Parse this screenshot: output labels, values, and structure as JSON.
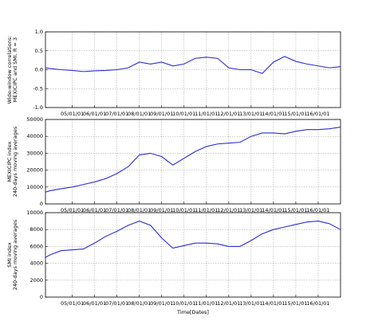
{
  "chart_data": [
    {
      "type": "line",
      "ylabel": [
        "Wide-window correlations:",
        "MEXICIPC and SMI, R = 3"
      ],
      "x": [
        2003.8,
        2004,
        2004.5,
        2005,
        2005.5,
        2006,
        2006.5,
        2007,
        2007.5,
        2008,
        2008.5,
        2009,
        2009.5,
        2010,
        2010.5,
        2011,
        2011.5,
        2012,
        2012.5,
        2013,
        2013.5,
        2014,
        2014.5,
        2015,
        2015.5,
        2016,
        2016.5,
        2017
      ],
      "values": [
        0.05,
        0.03,
        0.0,
        -0.02,
        -0.05,
        -0.03,
        -0.02,
        0.0,
        0.05,
        0.2,
        0.15,
        0.2,
        0.1,
        0.15,
        0.3,
        0.33,
        0.3,
        0.05,
        0.0,
        0.0,
        -0.1,
        0.2,
        0.35,
        0.22,
        0.15,
        0.1,
        0.05,
        0.08
      ],
      "color": "#2b2bd9",
      "xlim": [
        2003.8,
        2017.0
      ],
      "xticks": [
        {
          "value": 2005,
          "label": "05/01/01"
        },
        {
          "value": 2006,
          "label": "06/01/01"
        },
        {
          "value": 2007,
          "label": "07/01/01"
        },
        {
          "value": 2008,
          "label": "08/01/01"
        },
        {
          "value": 2009,
          "label": "09/01/01"
        },
        {
          "value": 2010,
          "label": "10/01/01"
        },
        {
          "value": 2011,
          "label": "11/01/01"
        },
        {
          "value": 2012,
          "label": "12/01/01"
        },
        {
          "value": 2013,
          "label": "13/01/01"
        },
        {
          "value": 2014,
          "label": "14/01/01"
        },
        {
          "value": 2015,
          "label": "15/01/01"
        },
        {
          "value": 2016,
          "label": "16/01/01"
        }
      ],
      "ylim": [
        -1.0,
        1.0
      ],
      "yticks": [
        {
          "value": -1,
          "label": "-1.0"
        },
        -0.5,
        {
          "value": 0,
          "label": "0.0"
        },
        0.5,
        {
          "value": 1,
          "label": "1.0"
        }
      ],
      "grid": true
    },
    {
      "type": "line",
      "ylabel": [
        "MEXICIPC index",
        "240-days moving averages"
      ],
      "x": [
        2003.8,
        2004,
        2004.5,
        2005,
        2005.5,
        2006,
        2006.5,
        2007,
        2007.5,
        2008,
        2008.5,
        2009,
        2009.5,
        2010,
        2010.5,
        2011,
        2011.5,
        2012,
        2012.5,
        2013,
        2013.5,
        2014,
        2014.5,
        2015,
        2015.5,
        2016,
        2016.5,
        2017
      ],
      "values": [
        7000,
        7800,
        9000,
        10000,
        11500,
        13000,
        15000,
        18000,
        22000,
        29000,
        30000,
        28000,
        23000,
        27000,
        31000,
        34000,
        35500,
        36000,
        36500,
        40000,
        42000,
        42000,
        41500,
        43000,
        44000,
        44000,
        44500,
        45500
      ],
      "color": "#2b2bd9",
      "xlim": [
        2003.8,
        2017.0
      ],
      "xticks": [
        {
          "value": 2005,
          "label": "05/01/01"
        },
        {
          "value": 2006,
          "label": "06/01/01"
        },
        {
          "value": 2007,
          "label": "07/01/01"
        },
        {
          "value": 2008,
          "label": "08/01/01"
        },
        {
          "value": 2009,
          "label": "09/01/01"
        },
        {
          "value": 2010,
          "label": "10/01/01"
        },
        {
          "value": 2011,
          "label": "11/01/01"
        },
        {
          "value": 2012,
          "label": "12/01/01"
        },
        {
          "value": 2013,
          "label": "13/01/01"
        },
        {
          "value": 2014,
          "label": "14/01/01"
        },
        {
          "value": 2015,
          "label": "15/01/01"
        },
        {
          "value": 2016,
          "label": "16/01/01"
        }
      ],
      "ylim": [
        0,
        50000
      ],
      "yticks": [
        0,
        10000,
        20000,
        30000,
        40000,
        50000
      ],
      "grid": true
    },
    {
      "type": "line",
      "ylabel": [
        "SMI index",
        "240-days moving averages"
      ],
      "xlabel": "Time[Dates]",
      "x": [
        2003.8,
        2004,
        2004.5,
        2005,
        2005.5,
        2006,
        2006.5,
        2007,
        2007.5,
        2008,
        2008.5,
        2009,
        2009.5,
        2010,
        2010.5,
        2011,
        2011.5,
        2012,
        2012.5,
        2013,
        2013.5,
        2014,
        2014.5,
        2015,
        2015.5,
        2016,
        2016.5,
        2017
      ],
      "values": [
        4700,
        5000,
        5500,
        5600,
        5700,
        6400,
        7200,
        7800,
        8500,
        9000,
        8500,
        7000,
        5800,
        6100,
        6400,
        6400,
        6300,
        6000,
        6000,
        6700,
        7500,
        8000,
        8300,
        8600,
        8900,
        9000,
        8700,
        8000
      ],
      "color": "#2b2bd9",
      "xlim": [
        2003.8,
        2017.0
      ],
      "xticks": [
        {
          "value": 2005,
          "label": "05/01/01"
        },
        {
          "value": 2006,
          "label": "06/01/01"
        },
        {
          "value": 2007,
          "label": "07/01/01"
        },
        {
          "value": 2008,
          "label": "08/01/01"
        },
        {
          "value": 2009,
          "label": "09/01/01"
        },
        {
          "value": 2010,
          "label": "10/01/01"
        },
        {
          "value": 2011,
          "label": "11/01/01"
        },
        {
          "value": 2012,
          "label": "12/01/01"
        },
        {
          "value": 2013,
          "label": "13/01/01"
        },
        {
          "value": 2014,
          "label": "14/01/01"
        },
        {
          "value": 2015,
          "label": "15/01/01"
        },
        {
          "value": 2016,
          "label": "16/01/01"
        }
      ],
      "ylim": [
        0,
        10000
      ],
      "yticks": [
        0,
        2000,
        4000,
        6000,
        8000,
        10000
      ],
      "grid": true
    }
  ]
}
